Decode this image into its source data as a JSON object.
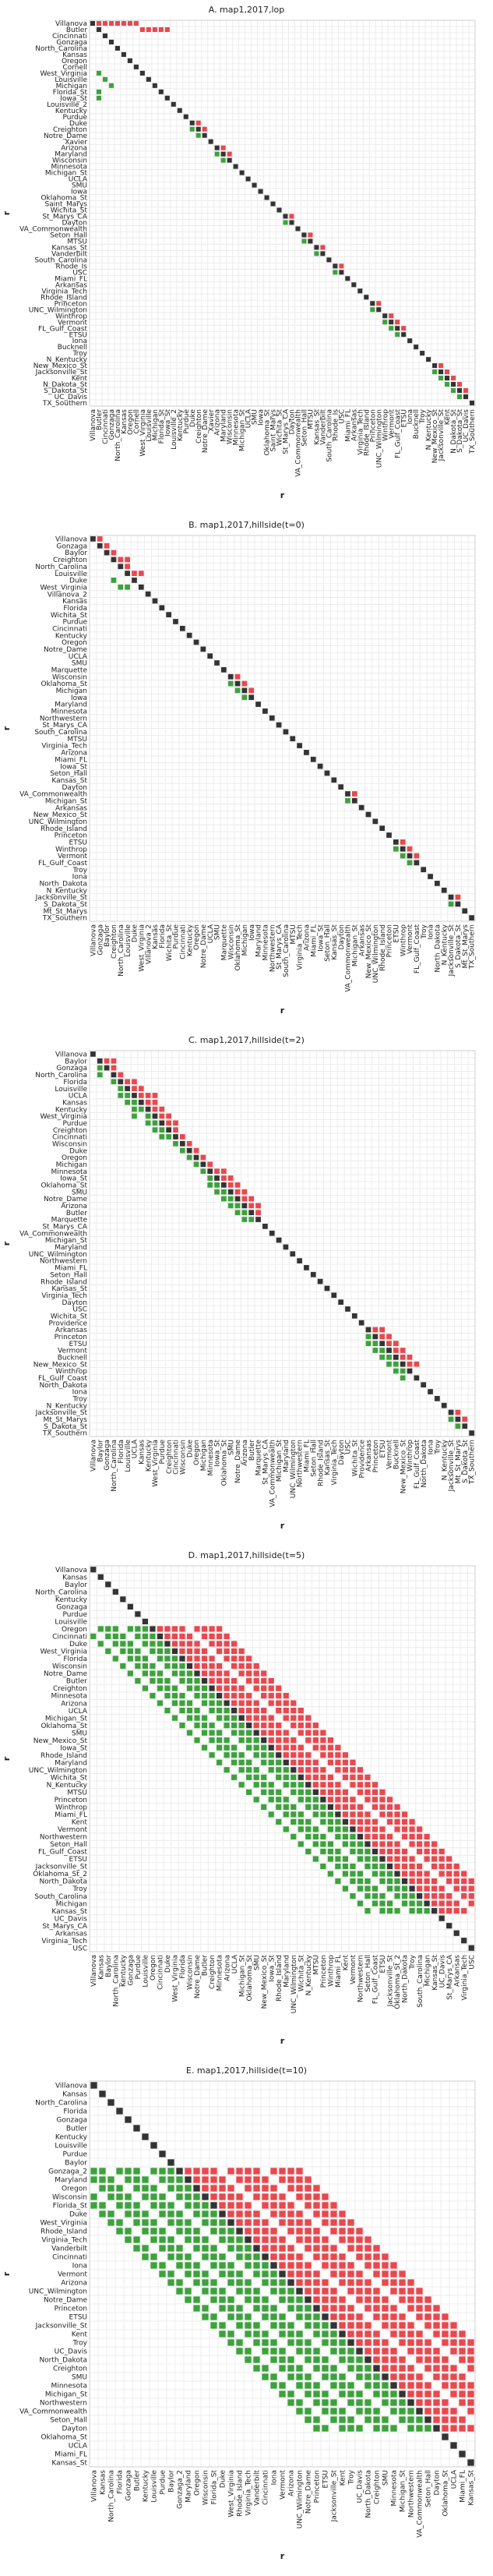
{
  "chart_data": [
    {
      "type": "heatmap",
      "title": "A. map1,2017,lop",
      "xlabel": "r",
      "ylabel": "r",
      "categories": [
        "Villanova",
        "Butler",
        "Cincinnati",
        "Gonzaga",
        "North_Carolina",
        "Kansas",
        "Oregon",
        "Cornell",
        "West_Virginia",
        "Louisville",
        "Michigan",
        "Florida_St",
        "Iowa_St",
        "Louisville_2",
        "Kentucky",
        "Purdue",
        "Duke",
        "Creighton",
        "Notre_Dame",
        "Xavier",
        "Arizona",
        "Maryland",
        "Wisconsin",
        "Minnesota",
        "Michigan_St",
        "UCLA",
        "SMU",
        "Iowa",
        "Oklahoma_St",
        "Saint_Marys",
        "Wichita_St",
        "St_Marys_CA",
        "Dayton",
        "VA_Commonwealth",
        "Seton_Hall",
        "MTSU",
        "Kansas_St",
        "Vanderbilt",
        "South_Carolina",
        "Rhode_Is",
        "USC",
        "Miami_FL",
        "Arkansas",
        "Virginia_Tech",
        "Rhode_Island",
        "Princeton",
        "UNC_Wilmington",
        "Winthrop",
        "Vermont",
        "FL_Gulf_Coast",
        "ETSU",
        "Iona",
        "Bucknell",
        "Troy",
        "N_Kentucky",
        "New_Mexico_St",
        "Jacksonville_St",
        "Kent",
        "N_Dakota_St",
        "S_Dakota_St",
        "UC_Davis",
        "TX_Southern"
      ],
      "colors": {
        "diag": "#333333",
        "upper": "#e8484e",
        "lower": "#3da23d"
      },
      "cells_upper": [
        [
          0,
          1
        ],
        [
          0,
          2
        ],
        [
          0,
          3
        ],
        [
          0,
          4
        ],
        [
          0,
          5
        ],
        [
          0,
          6
        ],
        [
          0,
          7
        ],
        [
          1,
          8
        ],
        [
          1,
          9
        ],
        [
          1,
          10
        ],
        [
          1,
          11
        ],
        [
          1,
          12
        ],
        [
          16,
          17
        ],
        [
          17,
          18
        ],
        [
          20,
          21
        ],
        [
          21,
          22
        ],
        [
          31,
          32
        ],
        [
          34,
          35
        ],
        [
          36,
          37
        ],
        [
          39,
          40
        ],
        [
          45,
          46
        ],
        [
          47,
          48
        ],
        [
          48,
          49
        ],
        [
          49,
          50
        ],
        [
          55,
          56
        ],
        [
          56,
          57
        ],
        [
          57,
          58
        ],
        [
          58,
          59
        ],
        [
          59,
          60
        ]
      ],
      "cells_lower": [
        [
          8,
          1
        ],
        [
          9,
          2
        ],
        [
          10,
          3
        ],
        [
          11,
          1
        ],
        [
          12,
          1
        ],
        [
          17,
          16
        ],
        [
          18,
          17
        ],
        [
          21,
          20
        ],
        [
          22,
          21
        ],
        [
          32,
          31
        ],
        [
          35,
          34
        ],
        [
          37,
          36
        ],
        [
          40,
          39
        ],
        [
          46,
          45
        ],
        [
          48,
          47
        ],
        [
          49,
          48
        ],
        [
          50,
          49
        ],
        [
          56,
          55
        ],
        [
          57,
          56
        ],
        [
          58,
          57
        ],
        [
          59,
          58
        ],
        [
          60,
          59
        ]
      ]
    },
    {
      "type": "heatmap",
      "title": "B. map1,2017,hillside(t=0)",
      "xlabel": "r",
      "ylabel": "r",
      "categories": [
        "Villanova",
        "Gonzaga",
        "Baylor",
        "Creighton",
        "North_Carolina",
        "Louisville",
        "Duke",
        "West_Virginia",
        "Villanova_2",
        "Kansas",
        "Florida",
        "Wichita_St",
        "Purdue",
        "Cincinnati",
        "Kentucky",
        "Oregon",
        "Notre_Dame",
        "UCLA",
        "SMU",
        "Marquette",
        "Wisconsin",
        "Oklahoma_St",
        "Michigan",
        "Iowa",
        "Maryland",
        "Minnesota",
        "Northwestern",
        "St_Marys_CA",
        "South_Carolina",
        "MTSU",
        "Virginia_Tech",
        "Arizona",
        "Miami_FL",
        "Iowa_St",
        "Seton_Hall",
        "Kansas_St",
        "Dayton",
        "VA_Commonwealth",
        "Michigan_St",
        "Arkansas",
        "New_Mexico_St",
        "UNC_Wilmington",
        "Rhode_Island",
        "Princeton",
        "ETSU",
        "Winthrop",
        "Vermont",
        "FL_Gulf_Coast",
        "Troy",
        "Iona",
        "North_Dakota",
        "N_Kentucky",
        "Jacksonville_St",
        "S_Dakota_St",
        "Mt_St_Marys",
        "TX_Southern"
      ],
      "colors": {
        "diag": "#333333",
        "upper": "#e8484e",
        "lower": "#3da23d"
      },
      "cells_upper": [
        [
          0,
          1
        ],
        [
          1,
          2
        ],
        [
          2,
          3
        ],
        [
          3,
          4
        ],
        [
          3,
          5
        ],
        [
          4,
          5
        ],
        [
          5,
          6
        ],
        [
          5,
          7
        ],
        [
          20,
          21
        ],
        [
          21,
          22
        ],
        [
          22,
          23
        ],
        [
          37,
          38
        ],
        [
          44,
          45
        ],
        [
          45,
          46
        ],
        [
          46,
          47
        ],
        [
          52,
          53
        ]
      ],
      "cells_lower": [
        [
          6,
          3
        ],
        [
          7,
          4
        ],
        [
          7,
          5
        ],
        [
          21,
          20
        ],
        [
          22,
          21
        ],
        [
          23,
          22
        ],
        [
          38,
          37
        ],
        [
          45,
          44
        ],
        [
          46,
          45
        ],
        [
          47,
          46
        ],
        [
          53,
          52
        ]
      ]
    },
    {
      "type": "heatmap",
      "title": "C. map1,2017,hillside(t=2)",
      "xlabel": "r",
      "ylabel": "r",
      "categories": [
        "Villanova",
        "Baylor",
        "Gonzaga",
        "North_Carolina",
        "Florida",
        "Louisville",
        "UCLA",
        "Kansas",
        "Kentucky",
        "West_Virginia",
        "Purdue",
        "Creighton",
        "Cincinnati",
        "Wisconsin",
        "Duke",
        "Oregon",
        "Michigan",
        "Minnesota",
        "Iowa_St",
        "Oklahoma_St",
        "SMU",
        "Notre_Dame",
        "Arizona",
        "Butler",
        "Marquette",
        "St_Marys_CA",
        "VA_Commonwealth",
        "Michigan_St",
        "Maryland",
        "UNC_Wilmington",
        "Northwestern",
        "Miami_FL",
        "Seton_Hall",
        "Rhode_Island",
        "Kansas_St",
        "Virginia_Tech",
        "Dayton",
        "USC",
        "Wichita_St",
        "Providence",
        "Arkansas",
        "Princeton",
        "ETSU",
        "Vermont",
        "Bucknell",
        "New_Mexico_St",
        "Winthrop",
        "FL_Gulf_Coast",
        "North_Dakota",
        "Iona",
        "Troy",
        "N_Kentucky",
        "Jacksonville_St",
        "Mt_St_Marys",
        "S_Dakota_St",
        "TX_Southern"
      ],
      "colors": {
        "diag": "#333333",
        "upper": "#e8484e",
        "lower": "#3da23d"
      },
      "cells_upper": [
        [
          1,
          2
        ],
        [
          1,
          3
        ],
        [
          2,
          3
        ],
        [
          3,
          4
        ],
        [
          4,
          5
        ],
        [
          4,
          6
        ],
        [
          5,
          6
        ],
        [
          5,
          7
        ],
        [
          6,
          7
        ],
        [
          6,
          8
        ],
        [
          6,
          9
        ],
        [
          7,
          8
        ],
        [
          7,
          9
        ],
        [
          8,
          9
        ],
        [
          8,
          10
        ],
        [
          9,
          10
        ],
        [
          9,
          11
        ],
        [
          10,
          11
        ],
        [
          10,
          12
        ],
        [
          11,
          12
        ],
        [
          12,
          13
        ],
        [
          13,
          14
        ],
        [
          14,
          15
        ],
        [
          15,
          16
        ],
        [
          16,
          17
        ],
        [
          17,
          18
        ],
        [
          17,
          19
        ],
        [
          18,
          19
        ],
        [
          18,
          20
        ],
        [
          19,
          20
        ],
        [
          19,
          21
        ],
        [
          20,
          21
        ],
        [
          20,
          22
        ],
        [
          21,
          22
        ],
        [
          21,
          23
        ],
        [
          22,
          23
        ],
        [
          22,
          24
        ],
        [
          23,
          24
        ],
        [
          40,
          41
        ],
        [
          40,
          42
        ],
        [
          41,
          42
        ],
        [
          41,
          43
        ],
        [
          42,
          43
        ],
        [
          42,
          44
        ],
        [
          43,
          44
        ],
        [
          43,
          45
        ],
        [
          44,
          45
        ],
        [
          44,
          46
        ],
        [
          45,
          46
        ],
        [
          45,
          47
        ],
        [
          52,
          53
        ],
        [
          53,
          54
        ]
      ],
      "cells_lower": [
        [
          2,
          1
        ],
        [
          3,
          1
        ],
        [
          4,
          3
        ],
        [
          5,
          4
        ],
        [
          6,
          4
        ],
        [
          6,
          5
        ],
        [
          7,
          5
        ],
        [
          7,
          6
        ],
        [
          8,
          6
        ],
        [
          8,
          7
        ],
        [
          9,
          6
        ],
        [
          9,
          8
        ],
        [
          10,
          8
        ],
        [
          10,
          9
        ],
        [
          11,
          9
        ],
        [
          11,
          10
        ],
        [
          12,
          10
        ],
        [
          12,
          11
        ],
        [
          13,
          12
        ],
        [
          14,
          13
        ],
        [
          15,
          14
        ],
        [
          16,
          15
        ],
        [
          17,
          16
        ],
        [
          18,
          17
        ],
        [
          19,
          17
        ],
        [
          19,
          18
        ],
        [
          20,
          18
        ],
        [
          20,
          19
        ],
        [
          21,
          19
        ],
        [
          21,
          20
        ],
        [
          22,
          20
        ],
        [
          22,
          21
        ],
        [
          23,
          21
        ],
        [
          23,
          22
        ],
        [
          24,
          22
        ],
        [
          24,
          23
        ],
        [
          41,
          40
        ],
        [
          42,
          40
        ],
        [
          42,
          41
        ],
        [
          43,
          41
        ],
        [
          43,
          42
        ],
        [
          44,
          42
        ],
        [
          44,
          43
        ],
        [
          45,
          43
        ],
        [
          45,
          44
        ],
        [
          46,
          44
        ],
        [
          46,
          45
        ],
        [
          47,
          45
        ],
        [
          53,
          52
        ],
        [
          54,
          53
        ]
      ]
    },
    {
      "type": "heatmap",
      "title": "D. map1,2017,hillside(t=5)",
      "xlabel": "r",
      "ylabel": "r",
      "categories": [
        "Villanova",
        "Kansas",
        "Baylor",
        "North_Carolina",
        "Kentucky",
        "Gonzaga",
        "Purdue",
        "Louisville",
        "Oregon",
        "Cincinnati",
        "Duke",
        "West_Virginia",
        "Florida",
        "Wisconsin",
        "Notre_Dame",
        "Butler",
        "Creighton",
        "Minnesota",
        "Arizona",
        "UCLA",
        "Michigan_St",
        "Oklahoma_St",
        "SMU",
        "New_Mexico_St",
        "Iowa_St",
        "Rhode_Island",
        "Maryland",
        "UNC_Wilmington",
        "Wichita_St",
        "N_Kentucky",
        "MTSU",
        "Princeton",
        "Winthrop",
        "Miami_FL",
        "Kent",
        "Vermont",
        "Northwestern",
        "Seton_Hall",
        "FL_Gulf_Coast",
        "ETSU",
        "Jacksonville_St",
        "Oklahoma_St_2",
        "North_Dakota",
        "Troy",
        "South_Carolina",
        "Michigan",
        "Kansas_St",
        "UC_Davis",
        "St_Marys_CA",
        "Arkansas",
        "Virginia_Tech",
        "USC"
      ],
      "colors": {
        "diag": "#333333",
        "upper": "#e8484e",
        "lower": "#3da23d"
      },
      "band": {
        "upper_start": 8,
        "upper_end": 46,
        "upper_width": 9,
        "lower_width": 9
      }
    },
    {
      "type": "heatmap",
      "title": "E. map1,2017,hillside(t=10)",
      "xlabel": "r",
      "ylabel": "r",
      "categories": [
        "Villanova",
        "Kansas",
        "North_Carolina",
        "Florida",
        "Gonzaga",
        "Butler",
        "Kentucky",
        "Louisville",
        "Purdue",
        "Baylor",
        "Gonzaga_2",
        "Maryland",
        "Oregon",
        "Wisconsin",
        "Florida_St",
        "Duke",
        "West_Virginia",
        "Rhode_Island",
        "Virginia_Tech",
        "Vanderbilt",
        "Cincinnati",
        "Iona",
        "Vermont",
        "Arizona",
        "UNC_Wilmington",
        "Notre_Dame",
        "Princeton",
        "ETSU",
        "Jacksonville_St",
        "Kent",
        "Troy",
        "UC_Davis",
        "North_Dakota",
        "Creighton",
        "SMU",
        "Minnesota",
        "Michigan_St",
        "Northwestern",
        "VA_Commonwealth",
        "Seton_Hall",
        "Dayton",
        "Oklahoma_St",
        "UCLA",
        "Miami_FL",
        "Kansas_St"
      ],
      "colors": {
        "diag": "#333333",
        "upper": "#e8484e",
        "lower": "#3da23d"
      },
      "band": {
        "upper_start": 10,
        "upper_end": 40,
        "upper_width": 14,
        "lower_width": 14
      }
    }
  ]
}
